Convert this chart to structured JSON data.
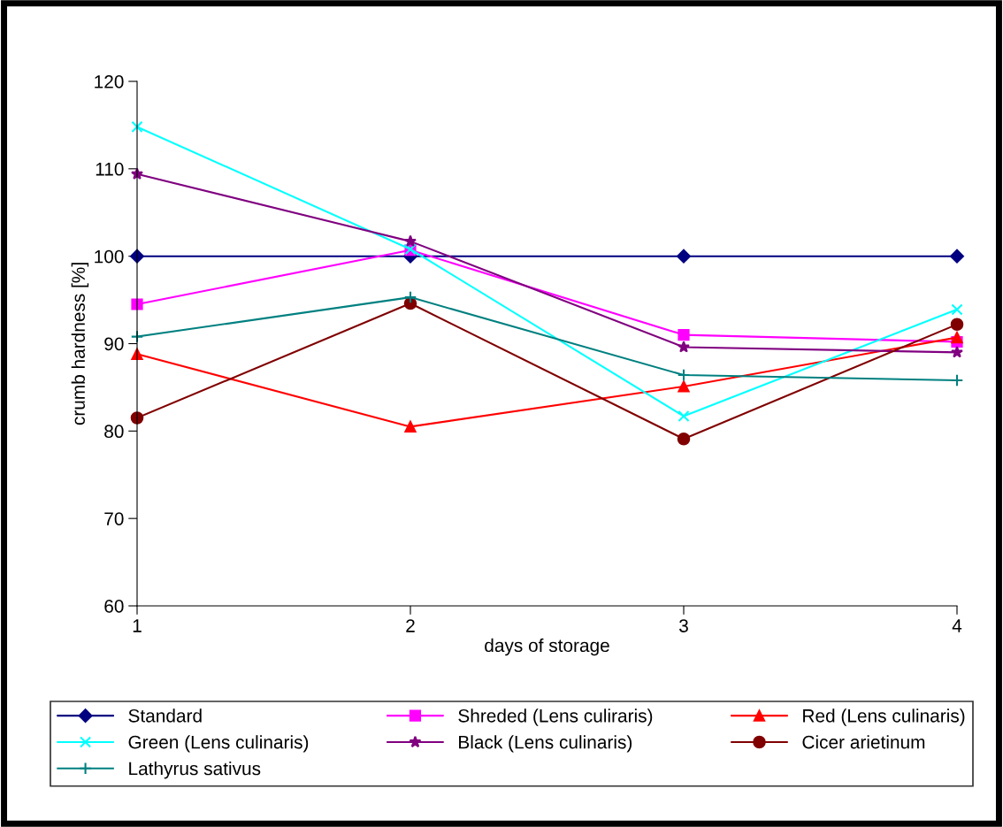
{
  "chart_data": {
    "type": "line",
    "xlabel": "days of storage",
    "ylabel": "crumb hardness [%]",
    "x": [
      1,
      2,
      3,
      4
    ],
    "xlim": [
      1,
      4
    ],
    "xticks": [
      1,
      2,
      3,
      4
    ],
    "ylim": [
      60,
      120
    ],
    "yticks": [
      60,
      70,
      80,
      90,
      100,
      110,
      120
    ],
    "grid": false,
    "legend": "bottom",
    "line_style": "solid",
    "series": [
      {
        "name": "Standard",
        "color": "#000080",
        "marker": "diamond",
        "values": [
          100,
          100,
          100,
          100
        ]
      },
      {
        "name": "Shreded (Lens culiraris)",
        "color": "#ff00ff",
        "marker": "square",
        "values": [
          94.5,
          100.7,
          91.0,
          90.2
        ]
      },
      {
        "name": "Red (Lens culinaris)",
        "color": "#ff0000",
        "marker": "triangle",
        "values": [
          88.8,
          80.5,
          85.1,
          90.7
        ]
      },
      {
        "name": "Green (Lens culinaris)",
        "color": "#00ffff",
        "marker": "cross",
        "values": [
          114.8,
          100.8,
          81.7,
          93.9
        ]
      },
      {
        "name": "Black (Lens culinaris)",
        "color": "#800080",
        "marker": "star",
        "values": [
          109.4,
          101.7,
          89.6,
          89.0
        ]
      },
      {
        "name": "Cicer arietinum",
        "color": "#800000",
        "marker": "circle",
        "values": [
          81.5,
          94.6,
          79.1,
          92.2
        ]
      },
      {
        "name": "Lathyrus sativus",
        "color": "#008080",
        "marker": "plus",
        "values": [
          90.8,
          95.3,
          86.4,
          85.8
        ]
      }
    ]
  }
}
